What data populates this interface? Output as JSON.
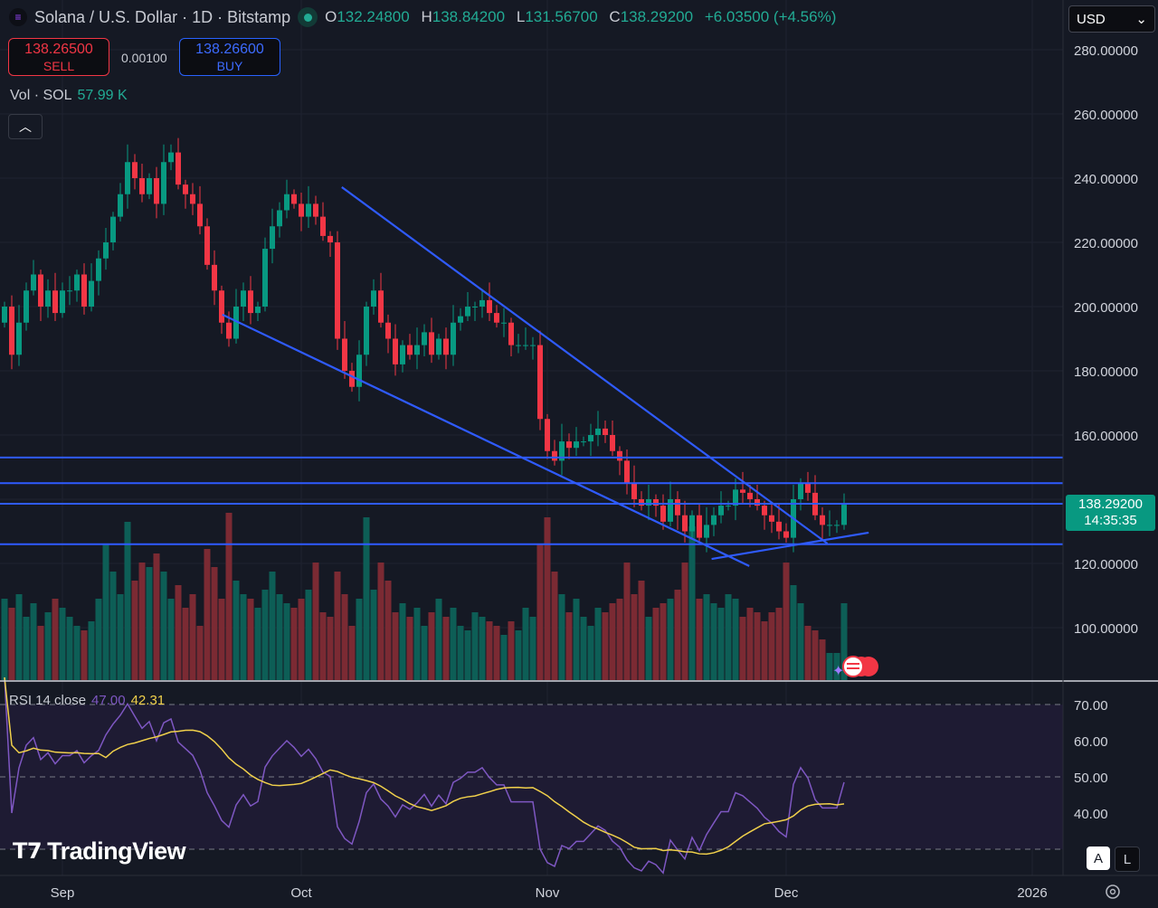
{
  "header": {
    "symbol_title": "Solana / U.S. Dollar · 1D · Bitstamp",
    "open_label": "O",
    "open": "132.24800",
    "high_label": "H",
    "high": "138.84200",
    "low_label": "L",
    "low": "131.56700",
    "close_label": "C",
    "close": "138.29200",
    "change": "+6.03500 (+4.56%)"
  },
  "trade": {
    "sell_price": "138.26500",
    "sell_label": "SELL",
    "spread": "0.00100",
    "buy_price": "138.26600",
    "buy_label": "BUY"
  },
  "volume_legend": {
    "label": "Vol · SOL",
    "value": "57.99 K"
  },
  "currency": "USD",
  "price_label": {
    "price": "138.29200",
    "countdown": "14:35:35"
  },
  "rsi_legend": {
    "label": "RSI 14 close",
    "rsi": "47.00",
    "ma": "42.31"
  },
  "watermark": "TradingView",
  "buttons": {
    "auto": "A",
    "log": "L"
  },
  "colors": {
    "up": "#089981",
    "down": "#f23645",
    "trendline": "#2f5bff",
    "rsi": "#7e57c2",
    "rsi_ma": "#f0d04b"
  },
  "chart_data": {
    "type": "candlestick",
    "title": "Solana / U.S. Dollar · 1D · Bitstamp",
    "first_open": 195,
    "closes": [
      200,
      185,
      195,
      205,
      210,
      200,
      205,
      198,
      205,
      205,
      210,
      200,
      208,
      215,
      220,
      228,
      235,
      245,
      240,
      235,
      240,
      232,
      245,
      248,
      238,
      235,
      232,
      225,
      213,
      205,
      195,
      190,
      200,
      205,
      198,
      200,
      218,
      225,
      230,
      235,
      232,
      228,
      232,
      228,
      222,
      220,
      190,
      180,
      175,
      185,
      200,
      205,
      195,
      190,
      182,
      188,
      185,
      188,
      192,
      185,
      190,
      185,
      195,
      197,
      200,
      200,
      202,
      198,
      195,
      195,
      188,
      188,
      188,
      188,
      165,
      155,
      152,
      158,
      156,
      158,
      158,
      160,
      162,
      160,
      155,
      152,
      145,
      140,
      138,
      140,
      138,
      133,
      140,
      135,
      130,
      135,
      128,
      132,
      135,
      138,
      138,
      143,
      142,
      140,
      138,
      135,
      133,
      130,
      128,
      140,
      145,
      142,
      135,
      132,
      132,
      132,
      138.292
    ],
    "volumes": [
      90,
      80,
      95,
      70,
      85,
      60,
      75,
      90,
      80,
      70,
      60,
      55,
      65,
      90,
      150,
      120,
      95,
      175,
      110,
      130,
      125,
      140,
      120,
      90,
      105,
      80,
      95,
      60,
      145,
      125,
      90,
      185,
      110,
      95,
      90,
      80,
      100,
      120,
      95,
      85,
      80,
      90,
      100,
      130,
      75,
      70,
      120,
      95,
      60,
      90,
      180,
      100,
      130,
      110,
      75,
      85,
      70,
      80,
      60,
      75,
      90,
      70,
      80,
      60,
      55,
      75,
      70,
      65,
      60,
      50,
      65,
      55,
      80,
      70,
      150,
      180,
      120,
      95,
      75,
      90,
      70,
      60,
      80,
      75,
      85,
      90,
      130,
      95,
      110,
      70,
      80,
      85,
      90,
      100,
      130,
      170,
      90,
      95,
      85,
      80,
      95,
      90,
      70,
      80,
      75,
      65,
      75,
      80,
      130,
      105,
      85,
      60,
      55,
      45,
      30,
      30,
      85
    ],
    "price_ticks": [
      "280.00000",
      "260.00000",
      "240.00000",
      "220.00000",
      "200.00000",
      "180.00000",
      "160.00000",
      "140.00000",
      "120.00000",
      "100.00000"
    ],
    "price_tick_values": [
      280,
      260,
      240,
      220,
      200,
      180,
      160,
      140,
      120,
      100
    ],
    "rsi_ticks": [
      "70.00",
      "60.00",
      "50.00",
      "40.00"
    ],
    "rsi_tick_values": [
      70,
      60,
      50,
      40
    ],
    "time_ticks": [
      {
        "label": "Sep",
        "bar": 8
      },
      {
        "label": "Oct",
        "bar": 41
      },
      {
        "label": "Nov",
        "bar": 75
      },
      {
        "label": "Dec",
        "bar": 108
      },
      {
        "label": "2026",
        "bar": 142
      }
    ],
    "horizontal_lines": [
      153,
      145,
      138.6,
      126
    ],
    "trend_lines": [
      {
        "from": [
          46.6,
          237.2
        ],
        "to": [
          113.7,
          126.2
        ]
      },
      {
        "from": [
          30.1,
          197.5
        ],
        "to": [
          102.9,
          119.2
        ]
      },
      {
        "from": [
          97.7,
          121.4
        ],
        "to": [
          119.4,
          129.6
        ]
      }
    ],
    "ylim": [
      85,
      285
    ],
    "rsi_period": 14
  }
}
